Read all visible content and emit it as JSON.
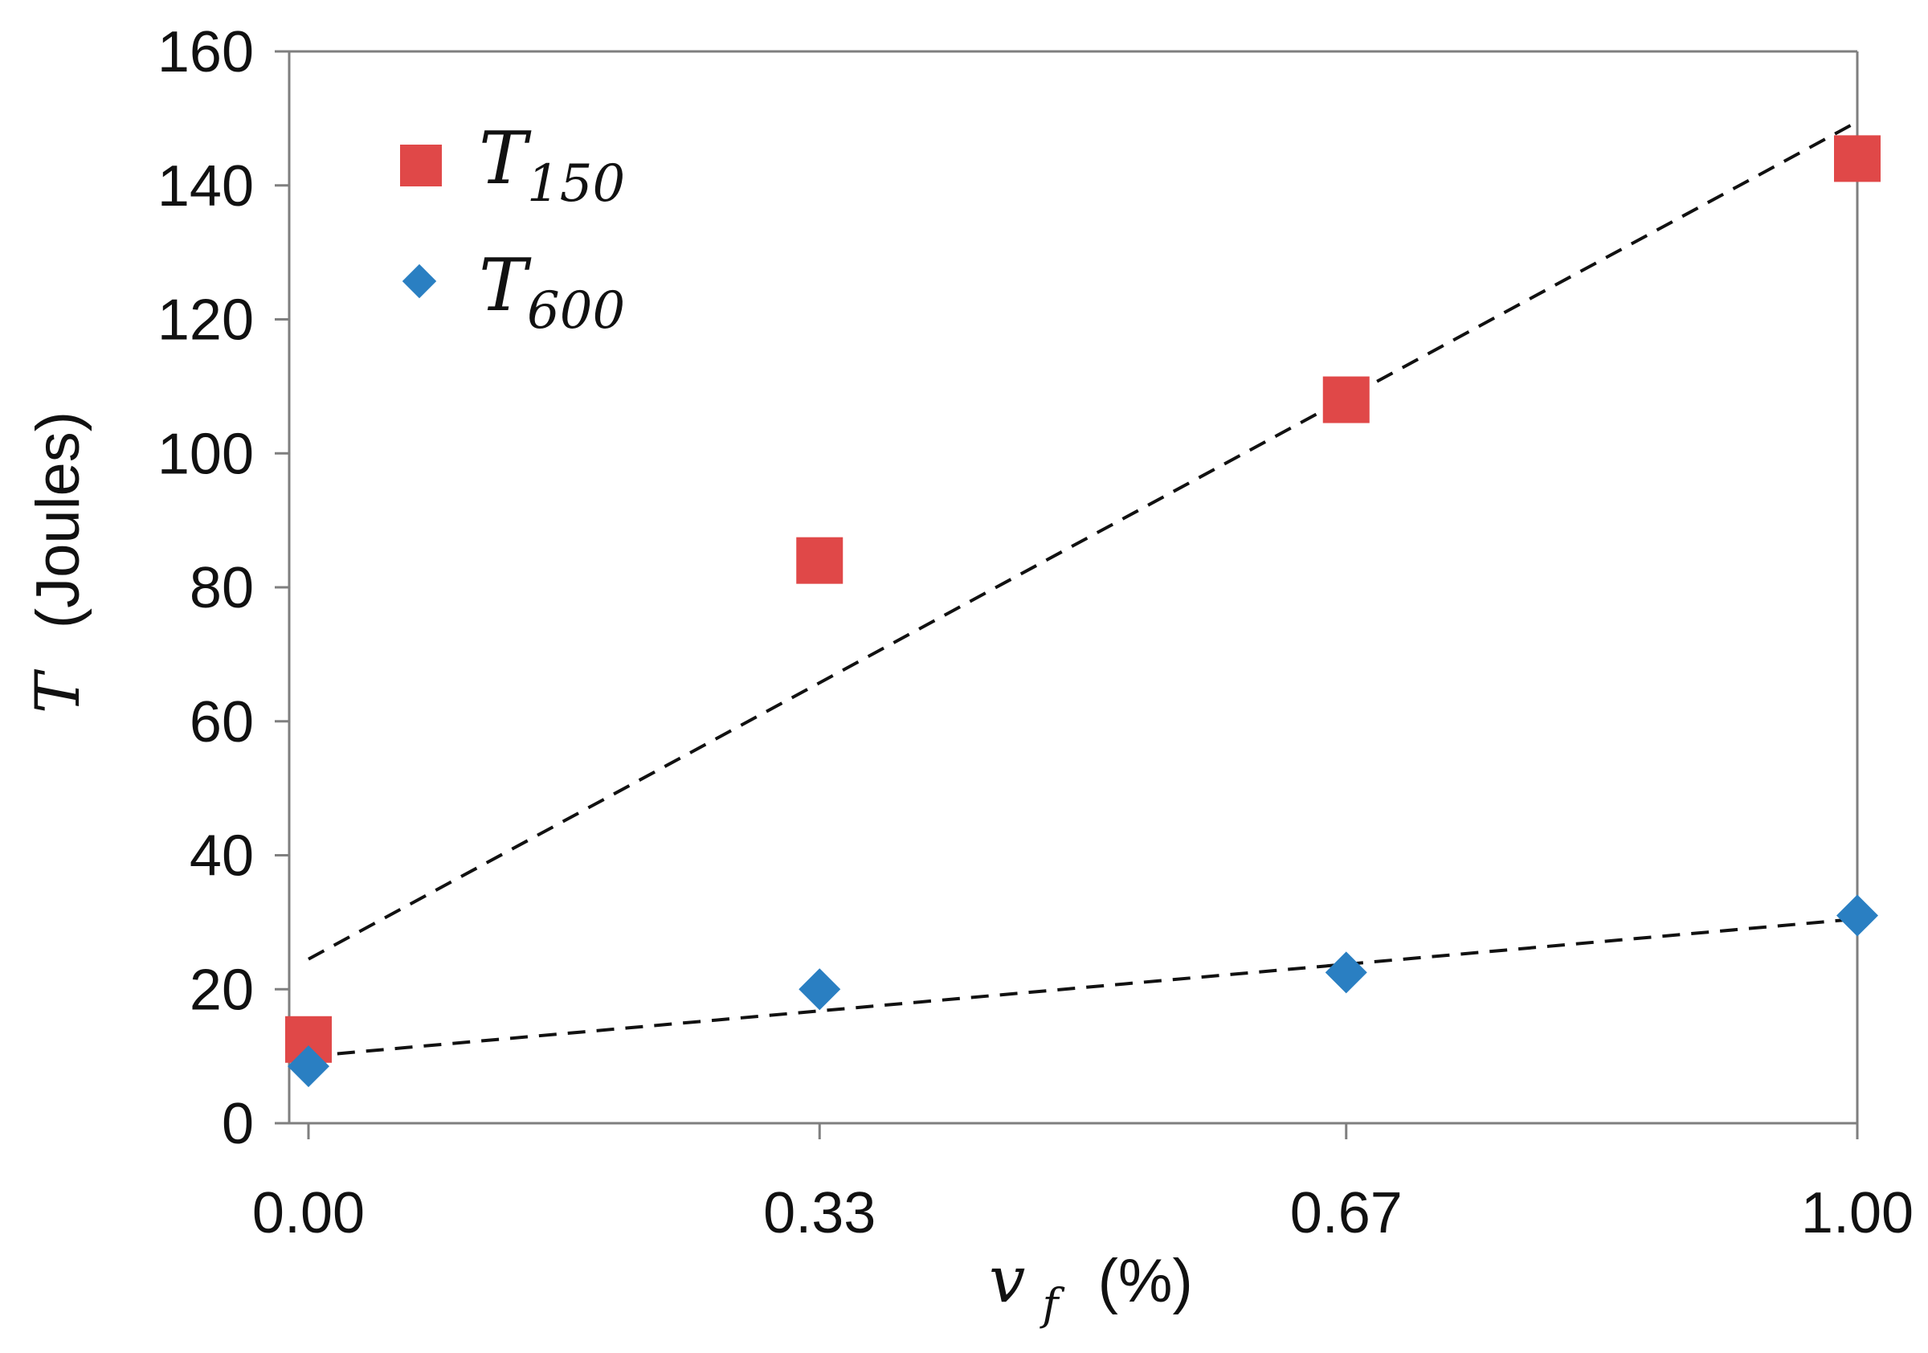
{
  "chart_data": {
    "type": "scatter",
    "title": "",
    "xlabel": {
      "symbol": "v",
      "subscript": "f",
      "suffix": "(%)"
    },
    "ylabel": {
      "symbol": "T",
      "suffix": "(Joules)"
    },
    "xlim": [
      0,
      1
    ],
    "ylim": [
      0,
      160
    ],
    "x_ticks": [
      0.0,
      0.33,
      0.67,
      1.0
    ],
    "x_tick_labels": [
      "0.00",
      "0.33",
      "0.67",
      "1.00"
    ],
    "y_ticks": [
      0,
      20,
      40,
      60,
      80,
      100,
      120,
      140,
      160
    ],
    "y_tick_labels": [
      "0",
      "20",
      "40",
      "60",
      "80",
      "100",
      "120",
      "140",
      "160"
    ],
    "grid": false,
    "legend_position": "top-left",
    "series": [
      {
        "name": "T150",
        "label_main": "T",
        "label_sub": "150",
        "marker": "square",
        "color": "#E04848",
        "x": [
          0.0,
          0.33,
          0.67,
          1.0
        ],
        "y": [
          12.5,
          84,
          108,
          144
        ],
        "trendline": {
          "style": "dashed",
          "from": [
            0.0,
            24.5
          ],
          "to": [
            1.0,
            149.5
          ]
        }
      },
      {
        "name": "T600",
        "label_main": "T",
        "label_sub": "600",
        "marker": "diamond",
        "color": "#2A7FC2",
        "x": [
          0.0,
          0.33,
          0.67,
          1.0
        ],
        "y": [
          8.5,
          20,
          22.5,
          31
        ],
        "trendline": {
          "style": "dashed",
          "from": [
            0.0,
            10
          ],
          "to": [
            1.0,
            30.5
          ]
        }
      }
    ]
  }
}
